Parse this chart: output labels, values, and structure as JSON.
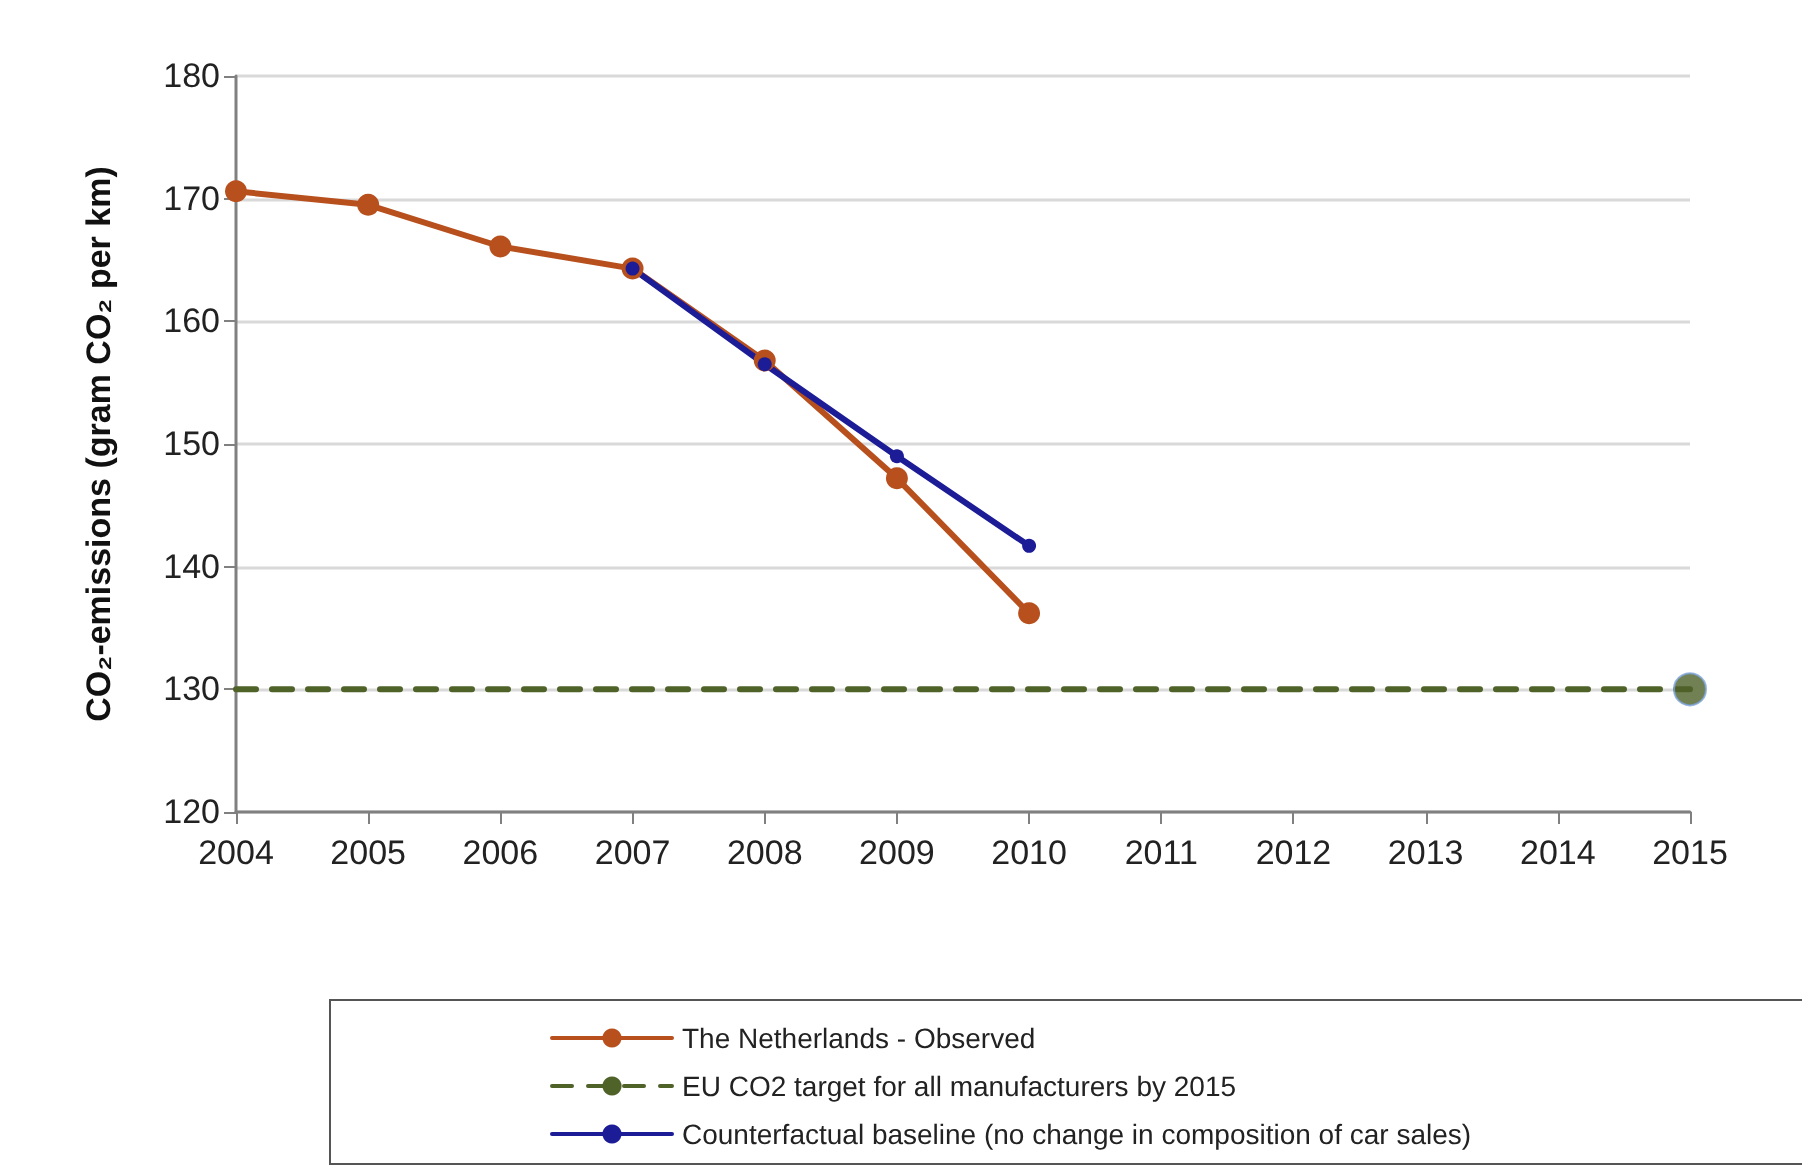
{
  "chart_data": {
    "type": "line",
    "ylabel": "CO₂-emissions (gram CO₂ per km)",
    "xlim": [
      2004,
      2015
    ],
    "xticks": [
      2004,
      2005,
      2006,
      2007,
      2008,
      2009,
      2010,
      2011,
      2012,
      2013,
      2014,
      2015
    ],
    "ylim": [
      120,
      180
    ],
    "yticks": [
      120,
      130,
      140,
      150,
      160,
      170,
      180
    ],
    "grid": "y",
    "legend": "bottom",
    "series": [
      {
        "name": "The Netherlands - Observed",
        "color": "#b8501e",
        "marker": "circle",
        "line_style": "solid",
        "x": [
          2004,
          2005,
          2006,
          2007,
          2008,
          2009,
          2010
        ],
        "values": [
          170.6,
          169.5,
          166.1,
          164.3,
          156.8,
          147.2,
          136.2
        ]
      },
      {
        "name": "EU CO2 target for all manufacturers by 2015",
        "color": "#4f6228",
        "marker": "none",
        "line_style": "dashed",
        "x": [
          2004,
          2015
        ],
        "values": [
          130,
          130
        ]
      },
      {
        "name": "Counterfactual baseline (no change in composition of car sales)",
        "color": "#1c1c96",
        "marker": "circle",
        "line_style": "solid",
        "x": [
          2007,
          2008,
          2009,
          2010
        ],
        "values": [
          164.3,
          156.5,
          149.0,
          141.7
        ]
      },
      {
        "type": "scatter",
        "color": "#4f6228",
        "marker": "circle",
        "x": [
          2015
        ],
        "values": [
          130
        ]
      }
    ]
  }
}
